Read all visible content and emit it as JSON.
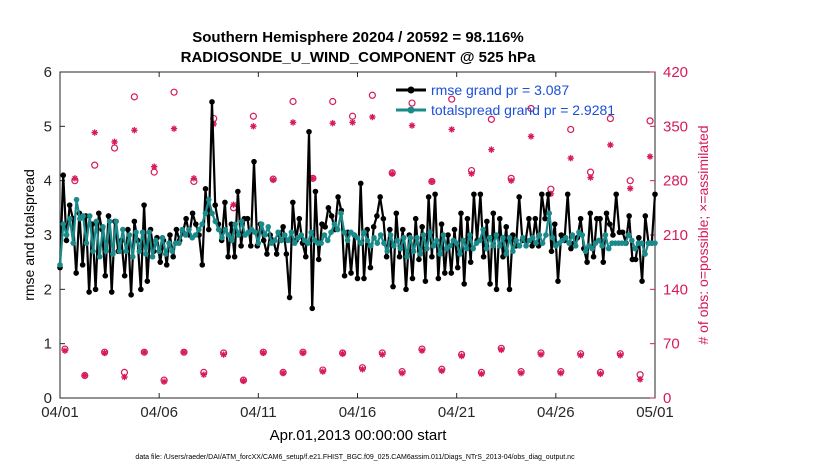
{
  "chart_data": {
    "type": "line",
    "title_line1": "Southern Hemisphere 20204 / 20592 = 98.116%",
    "title_line2": "RADIOSONDE_U_WIND_COMPONENT @ 525 hPa",
    "ylabel_left": "rmse and totalspread",
    "ylabel_right": "# of obs: o=possible; ×=assimilated",
    "xlabel": "Apr.01,2013 00:00:00 start",
    "footer": "data file: /Users/raeder/DAI/ATM_forcXX/CAM6_setup/f.e21.FHIST_BGC.f09_025.CAM6assim.011/Diags_NTrS_2013-04/obs_diag_output.nc",
    "xlim": [
      0,
      30
    ],
    "ylim_left": [
      0,
      6
    ],
    "ylim_right": [
      0,
      420
    ],
    "x_ticks": [
      0,
      5,
      10,
      15,
      20,
      25,
      30
    ],
    "x_tick_labels": [
      "04/01",
      "04/06",
      "04/11",
      "04/16",
      "04/21",
      "04/26",
      "05/01"
    ],
    "y_left_ticks": [
      "0",
      "1",
      "2",
      "3",
      "4",
      "5",
      "6"
    ],
    "y_right_ticks": [
      "0",
      "70",
      "140",
      "210",
      "280",
      "350",
      "420"
    ],
    "colors": {
      "rmse": "#000000",
      "spread": "#1a8a8a",
      "obs": "#d61a5a",
      "legend_text": "#1a4fd8"
    },
    "series": [
      {
        "name": "rmse grand pr = 3.087",
        "values": [
          2.4,
          4.1,
          2.9,
          3.55,
          3.3,
          2.3,
          3.4,
          2.45,
          3.35,
          1.95,
          3.2,
          2.0,
          3.4,
          3.1,
          2.25,
          3.35,
          1.95,
          3.25,
          2.7,
          2.9,
          2.25,
          3.1,
          1.9,
          3.25,
          2.9,
          2.0,
          3.55,
          2.15,
          3.1,
          2.7,
          2.95,
          2.5,
          2.9,
          2.45,
          3.0,
          2.6,
          3.1,
          2.9,
          3.05,
          3.3,
          3.0,
          3.4,
          3.2,
          3.0,
          2.45,
          3.85,
          3.1,
          5.45,
          3.55,
          3.2,
          2.9,
          3.6,
          2.6,
          3.2,
          2.6,
          3.8,
          2.8,
          3.3,
          3.3,
          2.8,
          4.35,
          2.8,
          3.2,
          2.9,
          2.65,
          3.0,
          2.9,
          2.65,
          3.0,
          3.15,
          2.65,
          1.85,
          3.6,
          2.9,
          3.3,
          2.85,
          2.6,
          4.9,
          1.65,
          3.8,
          2.55,
          3.2,
          3.15,
          3.5,
          3.35,
          3.1,
          3.7,
          3.45,
          2.25,
          3.05,
          2.3,
          3.0,
          2.2,
          3.95,
          2.2,
          3.1,
          2.4,
          3.15,
          3.35,
          3.7,
          3.3,
          2.6,
          3.1,
          2.05,
          3.4,
          2.6,
          3.1,
          2.0,
          3.0,
          2.2,
          3.3,
          2.55,
          3.15,
          2.15,
          3.7,
          2.6,
          3.75,
          2.2,
          3.2,
          2.3,
          3.0,
          2.3,
          3.1,
          2.4,
          3.4,
          2.1,
          3.3,
          2.5,
          3.75,
          2.9,
          3.75,
          2.6,
          3.25,
          2.1,
          3.4,
          2.0,
          3.3,
          2.6,
          3.15,
          2.0,
          3.0,
          2.8,
          3.7,
          2.9,
          2.9,
          3.3,
          2.8,
          3.3,
          2.8,
          3.75,
          3.3,
          3.75,
          2.7,
          3.2,
          2.15,
          3.0,
          2.9,
          3.75,
          2.75,
          2.85,
          2.95,
          3.3,
          2.75,
          2.5,
          3.4,
          2.6,
          3.3,
          3.3,
          2.5,
          3.4,
          3.2,
          3.0,
          3.75,
          3.05,
          3.05,
          2.85,
          3.35,
          2.55,
          2.55,
          2.95,
          2.15,
          3.35,
          2.85,
          2.85,
          3.75
        ]
      },
      {
        "name": "totalspread grand pr = 2.9281",
        "values": [
          2.45,
          3.2,
          3.0,
          3.3,
          2.85,
          3.65,
          3.3,
          3.35,
          2.85,
          3.35,
          2.7,
          3.25,
          2.6,
          3.15,
          2.7,
          3.25,
          2.65,
          3.25,
          2.7,
          3.1,
          2.7,
          3.0,
          2.6,
          3.05,
          2.7,
          3.05,
          2.65,
          3.05,
          2.6,
          2.9,
          2.7,
          2.95,
          2.65,
          2.85,
          2.7,
          2.85,
          2.85,
          3.1,
          3.0,
          3.1,
          2.95,
          3.0,
          3.1,
          3.2,
          3.4,
          3.65,
          3.4,
          3.25,
          3.1,
          2.95,
          3.1,
          3.0,
          2.9,
          3.2,
          3.0,
          3.25,
          3.0,
          3.05,
          3.1,
          3.05,
          2.85,
          3.2,
          3.0,
          3.15,
          2.85,
          2.9,
          3.05,
          2.9,
          3.0,
          2.9,
          3.05,
          2.85,
          2.95,
          3.0,
          2.9,
          2.85,
          3.05,
          2.9,
          2.85,
          2.85,
          3.0,
          2.9,
          3.05,
          3.2,
          3.1,
          3.4,
          3.05,
          2.9,
          3.05,
          3.0,
          2.95,
          2.85,
          3.05,
          2.9,
          2.8,
          2.95,
          2.85,
          3.0,
          2.85,
          2.7,
          3.0,
          2.8,
          2.9,
          2.75,
          2.95,
          2.6,
          2.95,
          2.7,
          2.95,
          2.65,
          3.0,
          2.75,
          3.05,
          2.8,
          2.9,
          2.65,
          3.0,
          2.75,
          2.8,
          2.9,
          2.85,
          2.65,
          2.9,
          2.75,
          3.0,
          2.75,
          2.85,
          2.9,
          3.1,
          2.75,
          2.95,
          2.8,
          3.0,
          2.8,
          2.95,
          2.65,
          2.95,
          2.7,
          2.9,
          2.8,
          2.95,
          2.8,
          2.9,
          2.95,
          2.85,
          3.0,
          2.85,
          3.0,
          3.4,
          2.95,
          2.8,
          2.85,
          2.9,
          2.95,
          2.85,
          3.0,
          2.8,
          3.05,
          3.0,
          2.7,
          2.8,
          2.75,
          2.85,
          2.9,
          2.8,
          3.0,
          2.75,
          2.85,
          2.85,
          2.85,
          2.85,
          2.85,
          3.0,
          2.9,
          2.75,
          2.85,
          2.85,
          2.65,
          2.85,
          2.85,
          2.85
        ]
      }
    ],
    "obs_possible": [
      {
        "x": 0.25,
        "y": 63
      },
      {
        "x": 0.75,
        "y": 280
      },
      {
        "x": 1.25,
        "y": 29
      },
      {
        "x": 1.75,
        "y": 300
      },
      {
        "x": 2.25,
        "y": 59
      },
      {
        "x": 2.75,
        "y": 322
      },
      {
        "x": 3.25,
        "y": 33
      },
      {
        "x": 3.75,
        "y": 388
      },
      {
        "x": 4.25,
        "y": 59
      },
      {
        "x": 4.75,
        "y": 291
      },
      {
        "x": 5.25,
        "y": 23
      },
      {
        "x": 5.75,
        "y": 394
      },
      {
        "x": 6.25,
        "y": 59
      },
      {
        "x": 6.75,
        "y": 279
      },
      {
        "x": 7.25,
        "y": 33
      },
      {
        "x": 7.75,
        "y": 360
      },
      {
        "x": 8.25,
        "y": 58
      },
      {
        "x": 8.75,
        "y": 245
      },
      {
        "x": 9.25,
        "y": 23
      },
      {
        "x": 9.75,
        "y": 363
      },
      {
        "x": 10.25,
        "y": 59
      },
      {
        "x": 10.75,
        "y": 282
      },
      {
        "x": 11.25,
        "y": 33
      },
      {
        "x": 11.75,
        "y": 382
      },
      {
        "x": 12.25,
        "y": 59
      },
      {
        "x": 12.75,
        "y": 283
      },
      {
        "x": 13.25,
        "y": 36
      },
      {
        "x": 13.75,
        "y": 382
      },
      {
        "x": 14.25,
        "y": 58
      },
      {
        "x": 14.75,
        "y": 363
      },
      {
        "x": 15.25,
        "y": 39
      },
      {
        "x": 15.75,
        "y": 390
      },
      {
        "x": 16.25,
        "y": 58
      },
      {
        "x": 16.75,
        "y": 290
      },
      {
        "x": 17.25,
        "y": 34
      },
      {
        "x": 17.75,
        "y": 380
      },
      {
        "x": 18.25,
        "y": 63
      },
      {
        "x": 18.75,
        "y": 279
      },
      {
        "x": 19.25,
        "y": 37
      },
      {
        "x": 19.75,
        "y": 385
      },
      {
        "x": 20.25,
        "y": 56
      },
      {
        "x": 20.75,
        "y": 293
      },
      {
        "x": 21.25,
        "y": 33
      },
      {
        "x": 21.75,
        "y": 359
      },
      {
        "x": 22.25,
        "y": 64
      },
      {
        "x": 22.75,
        "y": 283
      },
      {
        "x": 23.25,
        "y": 34
      },
      {
        "x": 23.75,
        "y": 373
      },
      {
        "x": 24.25,
        "y": 58
      },
      {
        "x": 24.75,
        "y": 269
      },
      {
        "x": 25.25,
        "y": 34
      },
      {
        "x": 25.75,
        "y": 346
      },
      {
        "x": 26.25,
        "y": 57
      },
      {
        "x": 26.75,
        "y": 291
      },
      {
        "x": 27.25,
        "y": 33
      },
      {
        "x": 27.75,
        "y": 360
      },
      {
        "x": 28.25,
        "y": 57
      },
      {
        "x": 28.75,
        "y": 280
      },
      {
        "x": 29.25,
        "y": 30
      },
      {
        "x": 29.75,
        "y": 357
      }
    ],
    "obs_assimilated": [
      {
        "x": 0.25,
        "y": 61
      },
      {
        "x": 0.75,
        "y": 283
      },
      {
        "x": 1.25,
        "y": 29
      },
      {
        "x": 1.75,
        "y": 342
      },
      {
        "x": 2.25,
        "y": 58
      },
      {
        "x": 2.75,
        "y": 330
      },
      {
        "x": 3.25,
        "y": 27
      },
      {
        "x": 3.75,
        "y": 345
      },
      {
        "x": 4.25,
        "y": 59
      },
      {
        "x": 4.75,
        "y": 298
      },
      {
        "x": 5.25,
        "y": 21
      },
      {
        "x": 5.75,
        "y": 347
      },
      {
        "x": 6.25,
        "y": 59
      },
      {
        "x": 6.75,
        "y": 283
      },
      {
        "x": 7.25,
        "y": 30
      },
      {
        "x": 7.75,
        "y": 353
      },
      {
        "x": 8.25,
        "y": 56
      },
      {
        "x": 8.75,
        "y": 249
      },
      {
        "x": 9.25,
        "y": 22
      },
      {
        "x": 9.75,
        "y": 350
      },
      {
        "x": 10.25,
        "y": 58
      },
      {
        "x": 10.75,
        "y": 281
      },
      {
        "x": 11.25,
        "y": 32
      },
      {
        "x": 11.75,
        "y": 355
      },
      {
        "x": 12.25,
        "y": 58
      },
      {
        "x": 12.75,
        "y": 283
      },
      {
        "x": 13.25,
        "y": 34
      },
      {
        "x": 13.75,
        "y": 354
      },
      {
        "x": 14.25,
        "y": 57
      },
      {
        "x": 14.75,
        "y": 355
      },
      {
        "x": 15.25,
        "y": 37
      },
      {
        "x": 15.75,
        "y": 362
      },
      {
        "x": 16.25,
        "y": 56
      },
      {
        "x": 16.75,
        "y": 289
      },
      {
        "x": 17.25,
        "y": 32
      },
      {
        "x": 17.75,
        "y": 351
      },
      {
        "x": 18.25,
        "y": 61
      },
      {
        "x": 18.75,
        "y": 279
      },
      {
        "x": 19.25,
        "y": 35
      },
      {
        "x": 19.75,
        "y": 346
      },
      {
        "x": 20.25,
        "y": 54
      },
      {
        "x": 20.75,
        "y": 289
      },
      {
        "x": 21.25,
        "y": 31
      },
      {
        "x": 21.75,
        "y": 320
      },
      {
        "x": 22.25,
        "y": 62
      },
      {
        "x": 22.75,
        "y": 280
      },
      {
        "x": 23.25,
        "y": 32
      },
      {
        "x": 23.75,
        "y": 337
      },
      {
        "x": 24.25,
        "y": 56
      },
      {
        "x": 24.75,
        "y": 263
      },
      {
        "x": 25.25,
        "y": 32
      },
      {
        "x": 25.75,
        "y": 309
      },
      {
        "x": 26.25,
        "y": 55
      },
      {
        "x": 26.75,
        "y": 284
      },
      {
        "x": 27.25,
        "y": 31
      },
      {
        "x": 27.75,
        "y": 326
      },
      {
        "x": 28.25,
        "y": 55
      },
      {
        "x": 28.75,
        "y": 270
      },
      {
        "x": 29.25,
        "y": 24
      },
      {
        "x": 29.75,
        "y": 311
      }
    ]
  }
}
